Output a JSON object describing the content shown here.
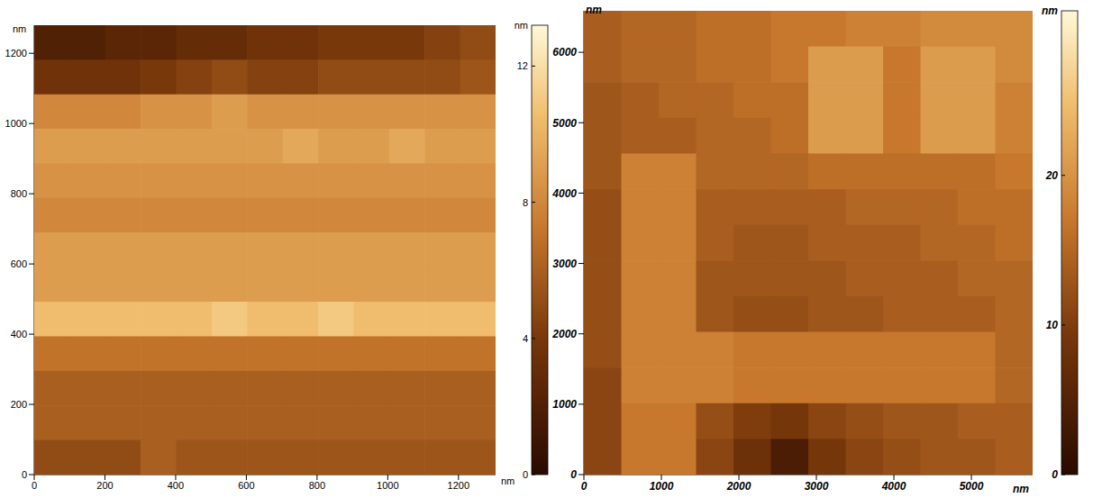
{
  "chart_data": [
    {
      "type": "heatmap",
      "x_label": "nm",
      "y_label": "nm",
      "xlim": [
        0,
        1305
      ],
      "xticks": [
        0,
        200,
        400,
        600,
        800,
        1000,
        1200
      ],
      "ylim": [
        0,
        1280
      ],
      "yticks": [
        0,
        200,
        400,
        600,
        800,
        1000,
        1200
      ],
      "z": [
        [
          2,
          2,
          2.5,
          2.5,
          3,
          3,
          3.5,
          3.5,
          4,
          4,
          4,
          4.5,
          5
        ],
        [
          3.5,
          3.5,
          3.5,
          4,
          4.5,
          5,
          4.5,
          4.5,
          5,
          5,
          5,
          5,
          5.5
        ],
        [
          8,
          8,
          8,
          8.5,
          8.5,
          9,
          8.5,
          8.5,
          8.5,
          8.5,
          8.5,
          8.5,
          8.5
        ],
        [
          9,
          9,
          9,
          9,
          9,
          9,
          9,
          9.5,
          9,
          9,
          9.5,
          9,
          9
        ],
        [
          8.5,
          8.5,
          8.5,
          8.5,
          8.5,
          8.5,
          8.5,
          8.5,
          8.5,
          8.5,
          8.5,
          8.5,
          8.5
        ],
        [
          8,
          8,
          8,
          8,
          8,
          8,
          8,
          8,
          8,
          8,
          8,
          8,
          8
        ],
        [
          9,
          9,
          9,
          9,
          9,
          9,
          9,
          9,
          9,
          9,
          9,
          9,
          9
        ],
        [
          9,
          9,
          9,
          9,
          9,
          9,
          9,
          9,
          9,
          9,
          9,
          9,
          9
        ],
        [
          10.5,
          10.5,
          10.5,
          10.5,
          10.5,
          11,
          10.5,
          10.5,
          11,
          10.5,
          10.5,
          10.5,
          10.5
        ],
        [
          7,
          7,
          7,
          7,
          7,
          7,
          7,
          7,
          7,
          7,
          7,
          7,
          7
        ],
        [
          6,
          6,
          6,
          6,
          6,
          6,
          6,
          6,
          6,
          6,
          6,
          6,
          6
        ],
        [
          6,
          6,
          6,
          6,
          6,
          6,
          6,
          6,
          6,
          6,
          6,
          6,
          6
        ],
        [
          5,
          5,
          5,
          6,
          5.5,
          5.5,
          5.5,
          5.5,
          5.5,
          5.5,
          5.5,
          5.5,
          5.5
        ]
      ],
      "colorbar_range": [
        0,
        13.2
      ],
      "colorbar_ticks": [
        0,
        4,
        8,
        12
      ],
      "colorbar_label": "nm"
    },
    {
      "type": "heatmap",
      "x_label": "nm",
      "y_label": "nm",
      "xlim": [
        0,
        5790
      ],
      "xticks": [
        0,
        1000,
        2000,
        3000,
        4000,
        5000
      ],
      "ylim": [
        0,
        6590
      ],
      "yticks": [
        0,
        1000,
        2000,
        3000,
        4000,
        5000,
        6000
      ],
      "z": [
        [
          14,
          15,
          15,
          16,
          16,
          17,
          17,
          18,
          18,
          19,
          19,
          19
        ],
        [
          14,
          15,
          15,
          16,
          16,
          17,
          21,
          21,
          17,
          21,
          21,
          19
        ],
        [
          13,
          14,
          15,
          15,
          16,
          16,
          21,
          21,
          17,
          21,
          21,
          18
        ],
        [
          13,
          14,
          14,
          15,
          15,
          16,
          21,
          21,
          17,
          21,
          21,
          18
        ],
        [
          13,
          18,
          18,
          15,
          15,
          15,
          16,
          16,
          16,
          16,
          16,
          17
        ],
        [
          12,
          18,
          18,
          14,
          14,
          14,
          14,
          15,
          15,
          15,
          16,
          16
        ],
        [
          12,
          18,
          18,
          14,
          13,
          13,
          14,
          14,
          14,
          15,
          15,
          16
        ],
        [
          12,
          18,
          18,
          13,
          13,
          13,
          13,
          14,
          14,
          14,
          15,
          15
        ],
        [
          12,
          18,
          18,
          13,
          12,
          12,
          13,
          13,
          14,
          14,
          14,
          15
        ],
        [
          12,
          18,
          18,
          18,
          17,
          17,
          17,
          17,
          17,
          17,
          17,
          15
        ],
        [
          11,
          18,
          18,
          18,
          17,
          17,
          17,
          17,
          17,
          17,
          17,
          15
        ],
        [
          11,
          17,
          17,
          12,
          10,
          9,
          11,
          12,
          13,
          13,
          14,
          14
        ],
        [
          11,
          17,
          17,
          11,
          8,
          4,
          9,
          11,
          12,
          13,
          13,
          14
        ]
      ],
      "colorbar_range": [
        0,
        31
      ],
      "colorbar_ticks": [
        0,
        10,
        20
      ],
      "colorbar_label": "nm"
    }
  ]
}
